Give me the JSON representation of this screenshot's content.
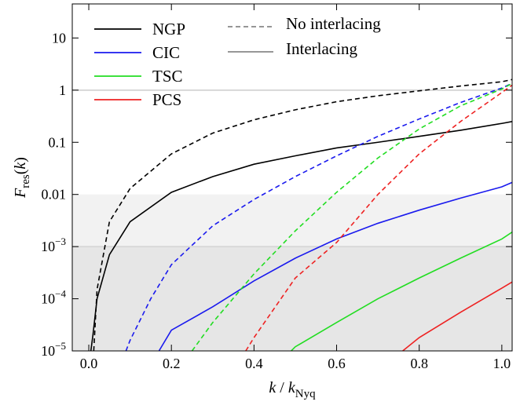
{
  "chart_data": {
    "type": "line",
    "xlabel": [
      "k",
      " / ",
      "k",
      "Nyq"
    ],
    "ylabel": [
      "F",
      "res",
      "(",
      "k",
      ")"
    ],
    "xlim": [
      -0.04,
      1.025
    ],
    "ylim": [
      1e-05,
      45
    ],
    "log_y": true,
    "xticks": [
      {
        "value": 0,
        "label": "0.0"
      },
      {
        "value": 0.2,
        "label": "0.2"
      },
      {
        "value": 0.4,
        "label": "0.4"
      },
      {
        "value": 0.6,
        "label": "0.6"
      },
      {
        "value": 0.8,
        "label": "0.8"
      },
      {
        "value": 1,
        "label": "1.0"
      }
    ],
    "yticks": [
      {
        "value": 1e-05,
        "label": "10",
        "exponent": "−5"
      },
      {
        "value": 0.0001,
        "label": "10",
        "exponent": "−4"
      },
      {
        "value": 0.001,
        "label": "10",
        "exponent": "−3"
      },
      0.01,
      0.1,
      1,
      10
    ],
    "bands": [
      {
        "from": 0.001,
        "to": 0.01,
        "color": "#f2f2f2"
      },
      {
        "from": 1e-05,
        "to": 0.001,
        "color": "#e6e6e6"
      }
    ],
    "reference_lines": [
      {
        "value": 1,
        "color": "#cccccc"
      },
      {
        "value": 0.001,
        "color": "#d4d4d4"
      }
    ],
    "line_styles": [
      {
        "name": "No interlacing",
        "dashed": true,
        "color": "#888888"
      },
      {
        "name": "Interlacing",
        "dashed": false,
        "color": "#888888"
      }
    ],
    "series": [
      {
        "name": "NGP",
        "color": "#000000",
        "x": [
          0.012,
          0.02,
          0.05,
          0.1,
          0.2,
          0.3,
          0.4,
          0.5,
          0.6,
          0.7,
          0.8,
          0.9,
          1.0,
          1.025
        ],
        "values": [
          1e-05,
          0.00015,
          0.003,
          0.013,
          0.06,
          0.15,
          0.27,
          0.42,
          0.6,
          0.78,
          0.97,
          1.2,
          1.45,
          1.6
        ],
        "x_interlaced": [
          0.005,
          0.01,
          0.02,
          0.05,
          0.1,
          0.2,
          0.3,
          0.4,
          0.5,
          0.6,
          0.7,
          0.8,
          0.9,
          1.0,
          1.025
        ],
        "values_interlaced": [
          1e-05,
          2e-05,
          0.0001,
          0.0007,
          0.003,
          0.011,
          0.022,
          0.038,
          0.055,
          0.078,
          0.1,
          0.13,
          0.17,
          0.23,
          0.25
        ]
      },
      {
        "name": "CIC",
        "color": "#1a1aee",
        "x": [
          0.09,
          0.1,
          0.15,
          0.2,
          0.3,
          0.4,
          0.5,
          0.6,
          0.7,
          0.8,
          0.9,
          1.0,
          1.025
        ],
        "values": [
          1e-05,
          1.6e-05,
          0.0001,
          0.00045,
          0.0025,
          0.008,
          0.022,
          0.055,
          0.13,
          0.28,
          0.58,
          1.1,
          1.35
        ],
        "x_interlaced": [
          0.17,
          0.2,
          0.3,
          0.4,
          0.5,
          0.6,
          0.7,
          0.8,
          0.9,
          1.0,
          1.025
        ],
        "values_interlaced": [
          1e-05,
          2.5e-05,
          7e-05,
          0.00022,
          0.0006,
          0.0014,
          0.0028,
          0.005,
          0.0085,
          0.014,
          0.017
        ]
      },
      {
        "name": "TSC",
        "color": "#22dd22",
        "x": [
          0.25,
          0.3,
          0.4,
          0.5,
          0.6,
          0.7,
          0.8,
          0.9,
          1.0,
          1.025
        ],
        "values": [
          1e-05,
          3.5e-05,
          0.0003,
          0.002,
          0.011,
          0.05,
          0.18,
          0.5,
          1.05,
          1.35
        ],
        "x_interlaced": [
          0.49,
          0.5,
          0.6,
          0.7,
          0.8,
          0.9,
          1.0,
          1.025
        ],
        "values_interlaced": [
          1e-05,
          1.2e-05,
          3.5e-05,
          0.0001,
          0.00025,
          0.0006,
          0.0014,
          0.0019
        ]
      },
      {
        "name": "PCS",
        "color": "#ee2222",
        "x": [
          0.38,
          0.4,
          0.5,
          0.6,
          0.7,
          0.8,
          0.9,
          1.0,
          1.025
        ],
        "values": [
          1e-05,
          1.8e-05,
          0.00025,
          0.0012,
          0.01,
          0.06,
          0.25,
          0.9,
          1.25
        ],
        "x_interlaced": [
          0.76,
          0.8,
          0.9,
          1.0,
          1.025
        ],
        "values_interlaced": [
          1e-05,
          1.8e-05,
          5.5e-05,
          0.00016,
          0.00021
        ]
      }
    ]
  }
}
